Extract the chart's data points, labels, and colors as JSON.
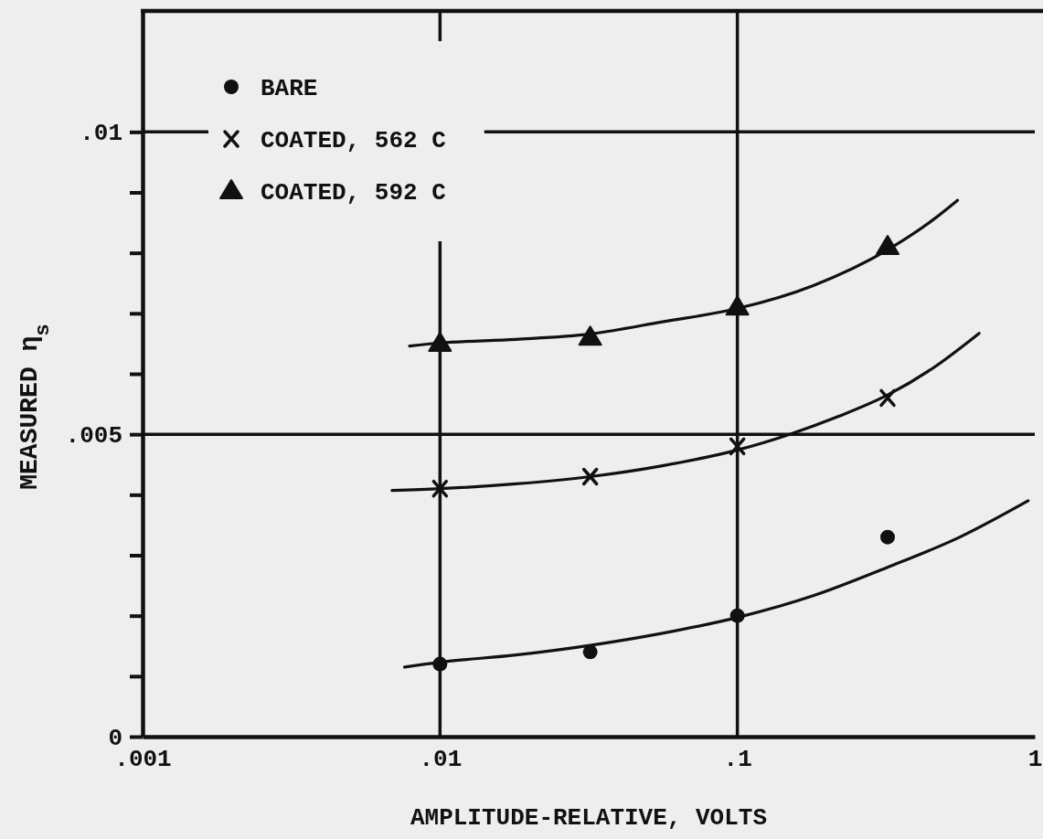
{
  "chart_data": {
    "type": "scatter",
    "xlabel": "AMPLITUDE-RELATIVE, VOLTS",
    "ylabel": "MEASURED η$_{s}$",
    "log": "x",
    "xlim": [
      0.001,
      1
    ],
    "xticks": [
      {
        "value": 0.001,
        "label": ".001"
      },
      {
        "value": 0.01,
        "label": ".01"
      },
      {
        "value": 0.1,
        "label": ".1"
      },
      1
    ],
    "ylim": [
      0,
      0.012
    ],
    "yticks": [
      0,
      {
        "value": 0.001,
        "label": null
      },
      {
        "value": 0.002,
        "label": null
      },
      {
        "value": 0.003,
        "label": null
      },
      {
        "value": 0.004,
        "label": null
      },
      {
        "value": 0.005,
        "label": ".005"
      },
      {
        "value": 0.006,
        "label": null
      },
      {
        "value": 0.007,
        "label": null
      },
      {
        "value": 0.008,
        "label": null
      },
      {
        "value": 0.009,
        "label": null
      },
      {
        "value": 0.01,
        "label": ".01"
      }
    ],
    "grid": true,
    "legend": "top left",
    "series": [
      {
        "name": "BARE",
        "marker": "circle",
        "color": "#111111",
        "x": [
          0.01,
          0.032,
          0.1,
          0.32
        ],
        "values": [
          0.0012,
          0.0014,
          0.002,
          0.0033
        ]
      },
      {
        "name": "COATED, 562 C",
        "marker": "cross",
        "color": "#111111",
        "x": [
          0.01,
          0.032,
          0.1,
          0.32
        ],
        "values": [
          0.0041,
          0.0043,
          0.0048,
          0.0056
        ]
      },
      {
        "name": "COATED, 592 C",
        "marker": "triangle",
        "color": "#111111",
        "x": [
          0.01,
          0.032,
          0.1,
          0.32
        ],
        "values": [
          0.0065,
          0.0066,
          0.0071,
          0.0081
        ]
      },
      {
        "type": "line",
        "color": "#111111",
        "x": [
          0.0076,
          0.01,
          0.018,
          0.032,
          0.056,
          0.1,
          0.18,
          0.32,
          0.56,
          0.95
        ],
        "values": [
          0.00115,
          0.00123,
          0.00135,
          0.00151,
          0.00171,
          0.00197,
          0.00233,
          0.0028,
          0.0033,
          0.0039
        ]
      },
      {
        "type": "line",
        "color": "#111111",
        "x": [
          0.0069,
          0.01,
          0.018,
          0.032,
          0.056,
          0.1,
          0.15,
          0.22,
          0.32,
          0.45,
          0.65
        ],
        "values": [
          0.00407,
          0.0041,
          0.00418,
          0.0043,
          0.00448,
          0.00474,
          0.005,
          0.0053,
          0.00565,
          0.00608,
          0.00667
        ]
      },
      {
        "type": "line",
        "color": "#111111",
        "x": [
          0.0079,
          0.01,
          0.018,
          0.032,
          0.056,
          0.1,
          0.18,
          0.32,
          0.45,
          0.55
        ],
        "values": [
          0.00646,
          0.00651,
          0.00657,
          0.00666,
          0.00686,
          0.00708,
          0.00746,
          0.00805,
          0.00853,
          0.00887
        ]
      }
    ]
  }
}
